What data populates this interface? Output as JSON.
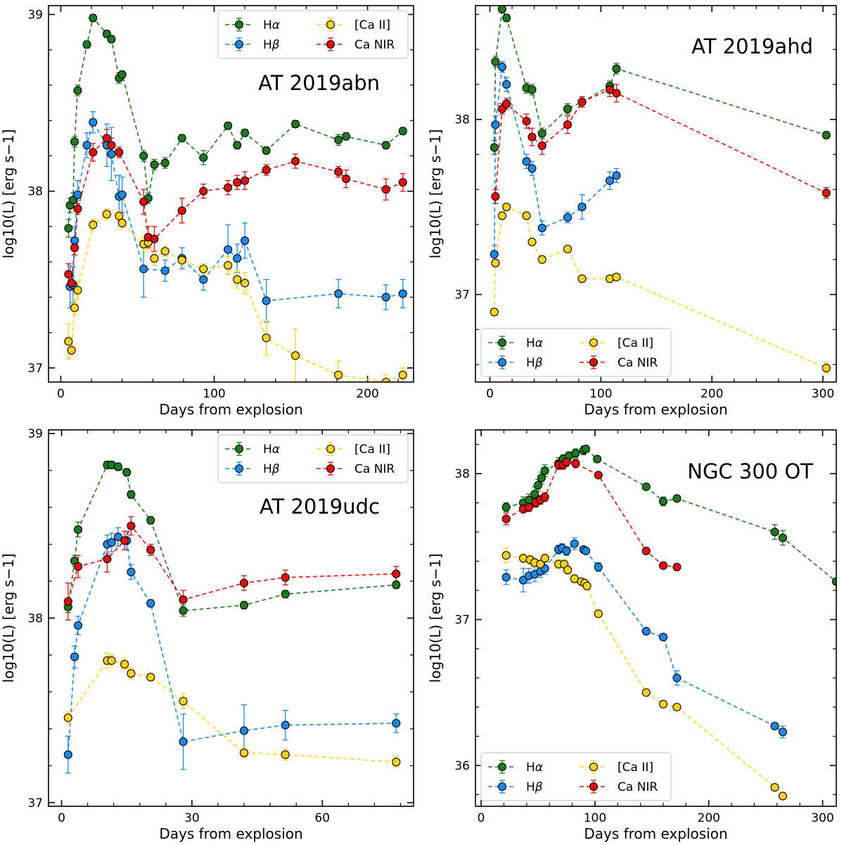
{
  "colors": {
    "halpha": "#1f7a1f",
    "hbeta": "#1e88e5",
    "caII": "#ffd21f",
    "canir": "#e0110d"
  },
  "legend_labels": {
    "halpha_main": "H",
    "halpha_sym": "α",
    "hbeta_main": "H",
    "hbeta_sym": "β",
    "caII": "[Ca II]",
    "canir": "Ca NIR"
  },
  "chart_data": [
    {
      "type": "scatter",
      "title": "AT 2019abn",
      "xlabel": "Days from explosion",
      "ylabel": "log10(L) [erg s−1]",
      "xlim": [
        -8,
        230
      ],
      "ylim": [
        36.92,
        39.05
      ],
      "xticks": [
        0,
        100,
        200
      ],
      "yticks": [
        37,
        38,
        39
      ],
      "legend": "top-right",
      "title_position": "top-right",
      "series": [
        {
          "name": "Hα",
          "key": "halpha",
          "x": [
            5,
            6,
            8,
            9,
            11,
            17,
            21,
            30,
            33,
            38,
            40,
            54,
            57,
            61,
            68,
            79,
            93,
            109,
            115,
            120,
            134,
            153,
            181,
            186,
            212,
            223
          ],
          "y": [
            37.79,
            37.92,
            37.95,
            38.28,
            38.57,
            38.83,
            38.98,
            38.89,
            38.86,
            38.64,
            38.66,
            38.2,
            37.96,
            38.15,
            38.16,
            38.3,
            38.19,
            38.37,
            38.26,
            38.33,
            38.23,
            38.38,
            38.29,
            38.31,
            38.26,
            38.34
          ],
          "err": [
            0.05,
            0.04,
            0.04,
            0.03,
            0.03,
            0.02,
            0.02,
            0.02,
            0.02,
            0.03,
            0.02,
            0.03,
            0.03,
            0.03,
            0.03,
            0.02,
            0.04,
            0.02,
            0.02,
            0.02,
            0.02,
            0.02,
            0.03,
            0.02,
            0.02,
            0.02
          ]
        },
        {
          "name": "Hβ",
          "key": "hbeta",
          "x": [
            6,
            8,
            9,
            11,
            17,
            21,
            30,
            33,
            38,
            40,
            54,
            68,
            79,
            93,
            109,
            115,
            120,
            134,
            181,
            212,
            223
          ],
          "y": [
            37.46,
            37.47,
            37.72,
            37.98,
            38.26,
            38.39,
            38.26,
            38.21,
            37.97,
            37.98,
            37.56,
            37.55,
            37.62,
            37.5,
            37.67,
            37.62,
            37.72,
            37.38,
            37.42,
            37.4,
            37.42
          ],
          "err": [
            0.12,
            0.1,
            0.08,
            0.08,
            0.07,
            0.06,
            0.12,
            0.15,
            0.12,
            0.1,
            0.16,
            0.06,
            0.06,
            0.06,
            0.14,
            0.08,
            0.1,
            0.12,
            0.08,
            0.07,
            0.08
          ]
        },
        {
          "name": "[Ca II]",
          "key": "caII",
          "x": [
            5,
            7,
            9,
            11,
            21,
            30,
            38,
            40,
            54,
            57,
            61,
            68,
            79,
            93,
            109,
            115,
            120,
            134,
            153,
            181,
            212,
            223
          ],
          "y": [
            37.15,
            37.1,
            37.34,
            37.44,
            37.81,
            37.87,
            37.86,
            37.82,
            37.7,
            37.71,
            37.62,
            37.66,
            37.61,
            37.56,
            37.58,
            37.5,
            37.48,
            37.17,
            37.07,
            36.96,
            36.92,
            36.96
          ],
          "err": [
            0.1,
            0.03,
            0.04,
            0.05,
            0.03,
            0.03,
            0.03,
            0.03,
            0.04,
            0.04,
            0.04,
            0.03,
            0.03,
            0.03,
            0.05,
            0.05,
            0.06,
            0.1,
            0.15,
            0.08,
            0.04,
            0.04
          ]
        },
        {
          "name": "Ca NIR",
          "key": "canir",
          "x": [
            5,
            7,
            9,
            11,
            21,
            30,
            33,
            38,
            54,
            57,
            61,
            79,
            93,
            109,
            115,
            120,
            134,
            153,
            181,
            186,
            212,
            223
          ],
          "y": [
            37.53,
            37.48,
            37.68,
            37.9,
            38.22,
            38.3,
            38.26,
            38.22,
            37.94,
            37.74,
            37.73,
            37.89,
            38.0,
            38.02,
            38.05,
            38.06,
            38.12,
            38.17,
            38.11,
            38.07,
            38.01,
            38.05
          ],
          "err": [
            0.06,
            0.04,
            0.04,
            0.03,
            0.05,
            0.05,
            0.04,
            0.03,
            0.07,
            0.06,
            0.07,
            0.07,
            0.04,
            0.04,
            0.04,
            0.05,
            0.03,
            0.04,
            0.03,
            0.05,
            0.06,
            0.05
          ]
        }
      ]
    },
    {
      "type": "scatter",
      "title": "AT 2019ahd",
      "xlabel": "Days from explosion",
      "ylabel": "log10(L) [erg s−1]",
      "xlim": [
        -13,
        312
      ],
      "ylim": [
        36.5,
        38.65
      ],
      "xticks": [
        0,
        100,
        200,
        300
      ],
      "yticks": [
        37,
        38
      ],
      "legend": "bottom-left",
      "title_position": "top-right",
      "series": [
        {
          "name": "Hα",
          "key": "halpha",
          "x": [
            4,
            5,
            11,
            15,
            33,
            38,
            47,
            70,
            83,
            108,
            114,
            303
          ],
          "y": [
            37.84,
            38.33,
            38.63,
            38.58,
            38.18,
            38.17,
            37.92,
            38.06,
            38.1,
            38.19,
            38.29,
            37.91
          ],
          "err": [
            0.04,
            0.03,
            0.02,
            0.02,
            0.03,
            0.03,
            0.03,
            0.03,
            0.03,
            0.03,
            0.03,
            0.02
          ]
        },
        {
          "name": "Hβ",
          "key": "hbeta",
          "x": [
            4,
            5,
            11,
            15,
            33,
            38,
            47,
            70,
            83,
            108,
            114
          ],
          "y": [
            37.23,
            37.97,
            38.3,
            38.2,
            37.76,
            37.72,
            37.38,
            37.44,
            37.5,
            37.65,
            37.68
          ],
          "err": [
            0.05,
            0.05,
            0.03,
            0.04,
            0.04,
            0.04,
            0.04,
            0.03,
            0.07,
            0.05,
            0.04
          ]
        },
        {
          "name": "[Ca II]",
          "key": "caII",
          "x": [
            4,
            5,
            11,
            15,
            33,
            38,
            47,
            70,
            83,
            108,
            114,
            303
          ],
          "y": [
            36.9,
            37.18,
            37.45,
            37.5,
            37.45,
            37.3,
            37.2,
            37.26,
            37.09,
            37.09,
            37.1,
            36.58
          ],
          "err": [
            0.02,
            0.02,
            0.02,
            0.02,
            0.02,
            0.02,
            0.02,
            0.02,
            0.02,
            0.02,
            0.02,
            0.03
          ]
        },
        {
          "name": "Ca NIR",
          "key": "canir",
          "x": [
            5,
            11,
            15,
            33,
            38,
            47,
            70,
            83,
            108,
            114,
            303
          ],
          "y": [
            37.56,
            38.06,
            38.09,
            37.99,
            37.9,
            37.85,
            37.97,
            38.1,
            38.17,
            38.15,
            37.58
          ],
          "err": [
            0.04,
            0.03,
            0.03,
            0.04,
            0.05,
            0.05,
            0.05,
            0.03,
            0.04,
            0.05,
            0.03
          ]
        }
      ]
    },
    {
      "type": "scatter",
      "title": "AT 2019udc",
      "xlabel": "Days from explosion",
      "ylabel": "log10(L) [erg s−1]",
      "xlim": [
        -3,
        81
      ],
      "ylim": [
        36.98,
        39.02
      ],
      "xticks": [
        0,
        30,
        60
      ],
      "yticks": [
        37,
        38,
        39
      ],
      "legend": "top-right",
      "title_position": "top-right",
      "series": [
        {
          "name": "Hα",
          "key": "halpha",
          "x": [
            1.5,
            3,
            3.8,
            10.5,
            11.5,
            13,
            15,
            16,
            20.5,
            28,
            42,
            51.5,
            77
          ],
          "y": [
            38.06,
            38.31,
            38.48,
            38.83,
            38.83,
            38.82,
            38.79,
            38.67,
            38.53,
            38.04,
            38.07,
            38.13,
            38.18
          ],
          "err": [
            0.03,
            0.03,
            0.04,
            0.02,
            0.02,
            0.02,
            0.02,
            0.02,
            0.02,
            0.03,
            0.02,
            0.02,
            0.02
          ]
        },
        {
          "name": "Hβ",
          "key": "hbeta",
          "x": [
            1.5,
            3,
            3.8,
            10.5,
            11.5,
            13,
            15,
            16,
            20.5,
            28,
            42,
            51.5,
            77
          ],
          "y": [
            37.26,
            37.79,
            37.96,
            38.4,
            38.41,
            38.44,
            38.42,
            38.25,
            38.08,
            37.33,
            37.39,
            37.42,
            37.43
          ],
          "err": [
            0.1,
            0.06,
            0.05,
            0.05,
            0.05,
            0.05,
            0.05,
            0.04,
            0.02,
            0.15,
            0.14,
            0.08,
            0.05
          ]
        },
        {
          "name": "[Ca II]",
          "key": "caII",
          "x": [
            1.5,
            10.5,
            11.5,
            14.5,
            16,
            20.5,
            28,
            42,
            51.5,
            77
          ],
          "y": [
            37.46,
            37.77,
            37.77,
            37.75,
            37.7,
            37.68,
            37.55,
            37.27,
            37.26,
            37.22
          ],
          "err": [
            0.03,
            0.04,
            0.03,
            0.03,
            0.03,
            0.02,
            0.04,
            0.03,
            0.03,
            0.03
          ]
        },
        {
          "name": "Ca NIR",
          "key": "canir",
          "x": [
            1.5,
            3.8,
            10.5,
            14.5,
            16,
            20.5,
            28,
            42,
            51.5,
            77
          ],
          "y": [
            38.09,
            38.28,
            38.32,
            38.42,
            38.5,
            38.37,
            38.1,
            38.19,
            38.22,
            38.24
          ],
          "err": [
            0.1,
            0.06,
            0.07,
            0.05,
            0.05,
            0.03,
            0.05,
            0.04,
            0.04,
            0.04
          ]
        }
      ]
    },
    {
      "type": "scatter",
      "title": "NGC 300 OT",
      "xlabel": "Days from explosion",
      "ylabel": "log10(L) [erg s−1]",
      "xlim": [
        -5,
        312
      ],
      "ylim": [
        35.72,
        38.3
      ],
      "xticks": [
        0,
        100,
        200,
        300
      ],
      "yticks": [
        36,
        37,
        38
      ],
      "legend": "bottom-left",
      "title_position": "top-right",
      "series": [
        {
          "name": "Hα",
          "key": "halpha",
          "x": [
            22,
            37,
            42,
            47,
            50,
            53,
            56,
            68,
            72,
            77,
            83,
            90,
            92,
            102,
            145,
            160,
            172,
            258,
            265,
            312
          ],
          "y": [
            37.77,
            37.8,
            37.82,
            37.86,
            37.92,
            37.97,
            38.02,
            38.07,
            38.1,
            38.12,
            38.14,
            38.16,
            38.17,
            38.1,
            37.91,
            37.81,
            37.83,
            37.6,
            37.56,
            37.26
          ],
          "err": [
            0.03,
            0.04,
            0.04,
            0.05,
            0.04,
            0.04,
            0.04,
            0.04,
            0.03,
            0.03,
            0.03,
            0.03,
            0.02,
            0.02,
            0.02,
            0.03,
            0.02,
            0.05,
            0.05,
            0.0
          ]
        },
        {
          "name": "Hβ",
          "key": "hbeta",
          "x": [
            22,
            37,
            42,
            47,
            52,
            56,
            68,
            71,
            75,
            82,
            90,
            92,
            103,
            145,
            160,
            172,
            258,
            265
          ],
          "y": [
            37.29,
            37.27,
            37.3,
            37.31,
            37.33,
            37.35,
            37.48,
            37.49,
            37.47,
            37.52,
            37.48,
            37.47,
            37.36,
            36.92,
            36.88,
            36.6,
            36.27,
            36.23
          ],
          "err": [
            0.05,
            0.08,
            0.05,
            0.05,
            0.04,
            0.04,
            0.03,
            0.03,
            0.03,
            0.04,
            0.02,
            0.02,
            0.03,
            0.02,
            0.02,
            0.05,
            0.02,
            0.04
          ]
        },
        {
          "name": "[Ca II]",
          "key": "caII",
          "x": [
            22,
            37,
            43,
            47,
            52,
            56,
            68,
            73,
            76,
            82,
            88,
            91,
            93,
            103,
            145,
            160,
            172,
            258,
            265
          ],
          "y": [
            37.44,
            37.42,
            37.41,
            37.39,
            37.38,
            37.42,
            37.38,
            37.38,
            37.34,
            37.28,
            37.26,
            37.25,
            37.23,
            37.04,
            36.5,
            36.42,
            36.4,
            35.85,
            35.79
          ],
          "err": [
            0.05,
            0.03,
            0.03,
            0.03,
            0.03,
            0.03,
            0.03,
            0.03,
            0.03,
            0.03,
            0.02,
            0.02,
            0.02,
            0.02,
            0.02,
            0.02,
            0.02,
            0.02,
            0.02
          ]
        },
        {
          "name": "Ca NIR",
          "key": "canir",
          "x": [
            22,
            37,
            42,
            48,
            52,
            56,
            68,
            72,
            75,
            83,
            103,
            145,
            160,
            172
          ],
          "y": [
            37.69,
            37.76,
            37.77,
            37.8,
            37.82,
            37.84,
            38.06,
            38.06,
            38.08,
            38.07,
            37.99,
            37.47,
            37.37,
            37.36
          ],
          "err": [
            0.04,
            0.03,
            0.03,
            0.03,
            0.03,
            0.03,
            0.03,
            0.03,
            0.03,
            0.03,
            0.02,
            0.02,
            0.02,
            0.02
          ]
        }
      ]
    }
  ]
}
